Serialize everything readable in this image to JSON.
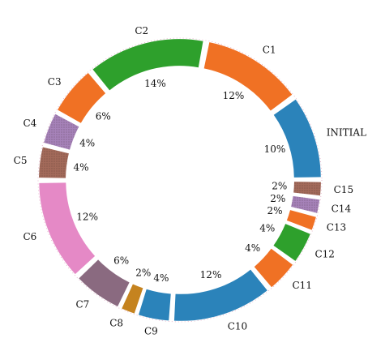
{
  "chart_data": {
    "type": "pie",
    "style": "donut",
    "categories": [
      "INITIAL",
      "C1",
      "C2",
      "C3",
      "C4",
      "C5",
      "C6",
      "C7",
      "C8",
      "C9",
      "C10",
      "C11",
      "C12",
      "C13",
      "C14",
      "C15"
    ],
    "values": [
      10,
      12,
      14,
      6,
      4,
      4,
      12,
      6,
      2,
      4,
      12,
      4,
      4,
      2,
      2,
      2
    ],
    "value_labels": [
      "10%",
      "12%",
      "14%",
      "6%",
      "4%",
      "4%",
      "12%",
      "6%",
      "2%",
      "4%",
      "12%",
      "4%",
      "4%",
      "2%",
      "2%",
      "2%"
    ],
    "colors": [
      "#2b83ba",
      "#f07124",
      "#2ea02c",
      "#f07124",
      "#a682b9",
      "#a36a5a",
      "#e589c6",
      "#8a6a80",
      "#c5831f",
      "#2b83ba",
      "#2b83ba",
      "#f07124",
      "#2ea02c",
      "#f07124",
      "#a682b9",
      "#a36a5a"
    ],
    "hatched": [
      "C4",
      "C5",
      "C14",
      "C15"
    ],
    "start": "right (3 o'clock)",
    "direction": "counterclockwise",
    "exploded": true,
    "legend": "none"
  }
}
